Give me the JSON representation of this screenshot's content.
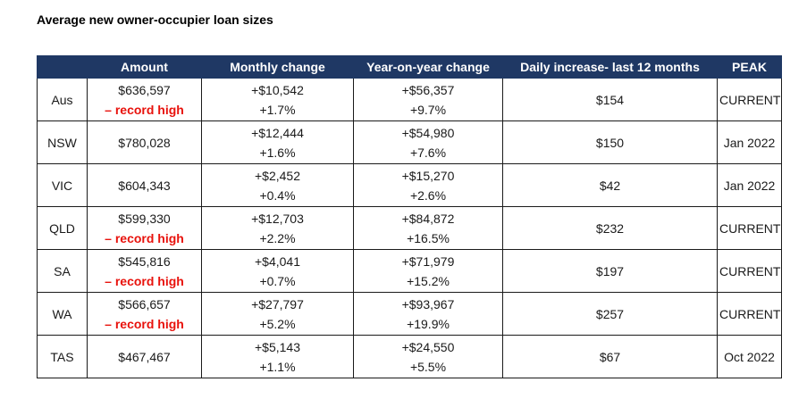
{
  "title": "Average new owner-occupier loan sizes",
  "columns": [
    "",
    "Amount",
    "Monthly change",
    "Year-on-year change",
    "Daily increase- last 12  months",
    "PEAK"
  ],
  "rows": [
    {
      "region": "Aus",
      "amount": "$636,597",
      "record_label": "– record high",
      "monthly_dollar": "+$10,542",
      "monthly_pct": "+1.7%",
      "yoy_dollar": "+$56,357",
      "yoy_pct": "+9.7%",
      "daily": "$154",
      "peak": "CURRENT"
    },
    {
      "region": "NSW",
      "amount": "$780,028",
      "record_label": "",
      "monthly_dollar": "+$12,444",
      "monthly_pct": "+1.6%",
      "yoy_dollar": "+$54,980",
      "yoy_pct": "+7.6%",
      "daily": "$150",
      "peak": "Jan 2022"
    },
    {
      "region": "VIC",
      "amount": "$604,343",
      "record_label": "",
      "monthly_dollar": "+$2,452",
      "monthly_pct": "+0.4%",
      "yoy_dollar": "+$15,270",
      "yoy_pct": "+2.6%",
      "daily": "$42",
      "peak": "Jan 2022"
    },
    {
      "region": "QLD",
      "amount": "$599,330",
      "record_label": "– record high",
      "monthly_dollar": "+$12,703",
      "monthly_pct": "+2.2%",
      "yoy_dollar": "+$84,872",
      "yoy_pct": "+16.5%",
      "daily": "$232",
      "peak": "CURRENT"
    },
    {
      "region": "SA",
      "amount": "$545,816",
      "record_label": "– record high",
      "monthly_dollar": "+$4,041",
      "monthly_pct": "+0.7%",
      "yoy_dollar": "+$71,979",
      "yoy_pct": "+15.2%",
      "daily": "$197",
      "peak": "CURRENT"
    },
    {
      "region": "WA",
      "amount": "$566,657",
      "record_label": "– record high",
      "monthly_dollar": "+$27,797",
      "monthly_pct": "+5.2%",
      "yoy_dollar": "+$93,967",
      "yoy_pct": "+19.9%",
      "daily": "$257",
      "peak": "CURRENT"
    },
    {
      "region": "TAS",
      "amount": "$467,467",
      "record_label": "",
      "monthly_dollar": "+$5,143",
      "monthly_pct": "+1.1%",
      "yoy_dollar": "+$24,550",
      "yoy_pct": "+5.5%",
      "daily": "$67",
      "peak": "Oct 2022"
    }
  ],
  "colors": {
    "header_bg": "#1f3864",
    "header_text": "#ffffff",
    "record_text": "#e8120c",
    "border": "#1a1a1a"
  }
}
